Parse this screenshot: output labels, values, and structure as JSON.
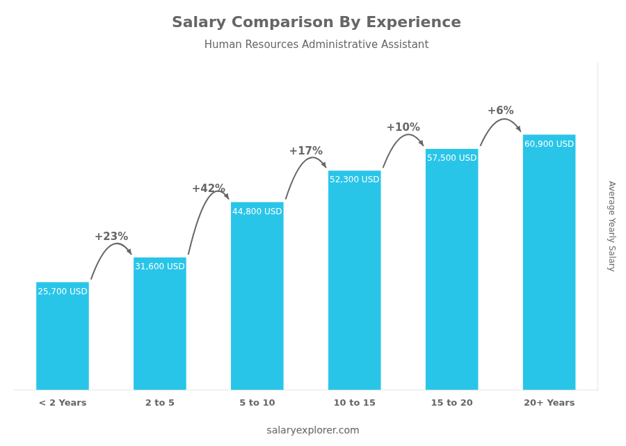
{
  "chart_data": {
    "type": "bar",
    "title": "Salary Comparison By Experience",
    "subtitle": "Human Resources Administrative Assistant",
    "y_label": "Average Yearly Salary",
    "footer": "salaryexplorer.com",
    "categories": [
      "< 2 Years",
      "2 to 5",
      "5 to 10",
      "10 to 15",
      "15 to 20",
      "20+ Years"
    ],
    "values": [
      25700,
      31600,
      44800,
      52300,
      57500,
      60900
    ],
    "value_labels": [
      "25,700 USD",
      "31,600 USD",
      "44,800 USD",
      "52,300 USD",
      "57,500 USD",
      "60,900 USD"
    ],
    "data_labels": true,
    "annotations": [
      "+23%",
      "+42%",
      "+17%",
      "+10%",
      "+6%"
    ],
    "color": "#29c5e8",
    "ylim": [
      0,
      78000
    ],
    "tick_labels": "x",
    "grid": false
  }
}
